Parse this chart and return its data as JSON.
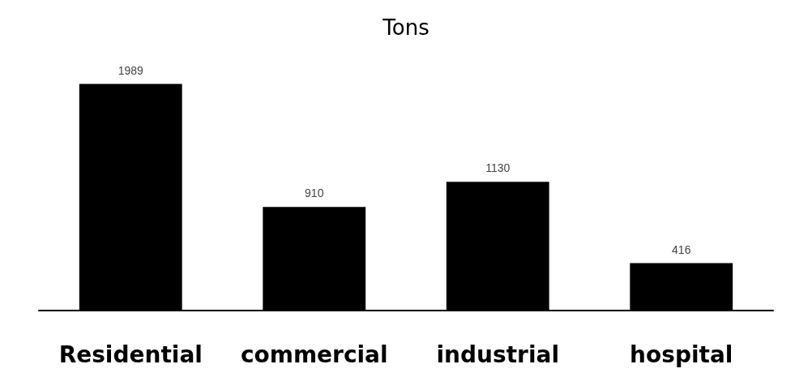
{
  "chart_data": {
    "type": "bar",
    "title": "Tons",
    "categories": [
      "Residential",
      "commercial",
      "industrial",
      "hospital"
    ],
    "values": [
      1989,
      910,
      1130,
      416
    ],
    "color": "#000000",
    "data_labels": true
  }
}
